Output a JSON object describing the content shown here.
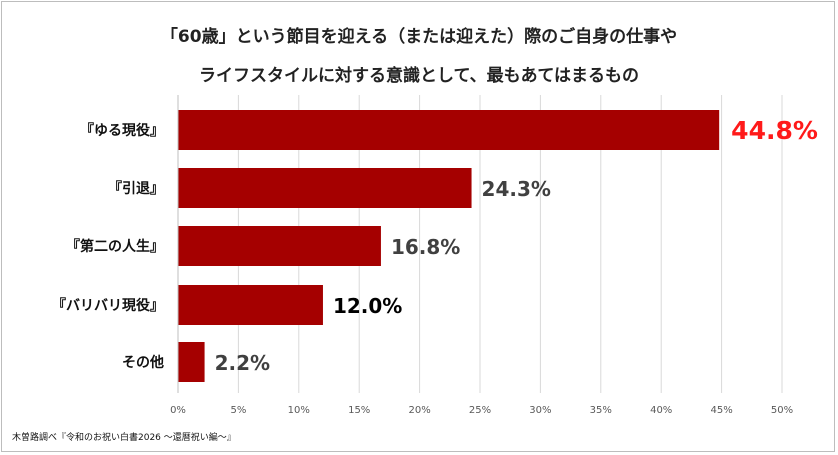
{
  "chart_data": {
    "type": "bar",
    "orientation": "horizontal",
    "title_lines": [
      "「60歳」という節目を迎える（または迎えた）際のご自身の仕事や",
      "ライフスタイルに対する意識として、最もあてはまるもの"
    ],
    "categories": [
      "『ゆる現役』",
      "『引退』",
      "『第二の人生』",
      "『バリバリ現役』",
      "その他"
    ],
    "values": [
      44.8,
      24.3,
      16.8,
      12.0,
      2.2
    ],
    "value_labels": [
      "44.8%",
      "24.3%",
      "16.8%",
      "12.0%",
      "2.2%"
    ],
    "label_colors": [
      "#ff1a1a",
      "#404040",
      "#404040",
      "#000000",
      "#404040"
    ],
    "xlim": [
      0,
      50
    ],
    "x_ticks": [
      "0%",
      "5%",
      "10%",
      "15%",
      "20%",
      "25%",
      "30%",
      "35%",
      "40%",
      "45%",
      "50%"
    ],
    "grid": "vertical",
    "bar_color": "#a50000"
  },
  "source_note": "木曽路調べ『令和のお祝い白書2026 ～還暦祝い編～』"
}
